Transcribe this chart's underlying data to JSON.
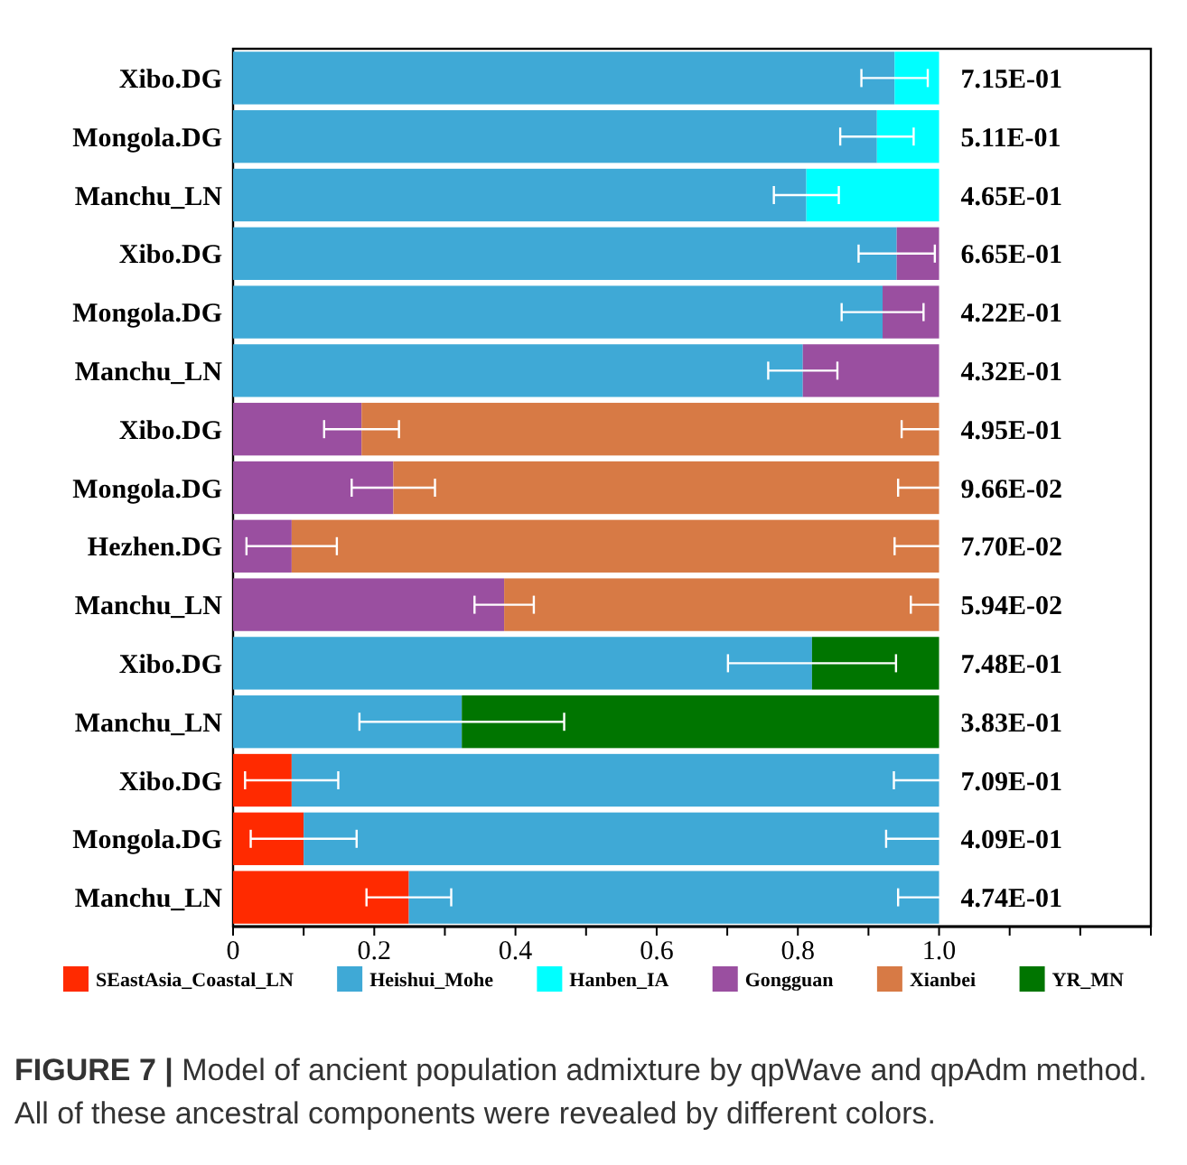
{
  "chart_data": {
    "type": "bar",
    "orientation": "horizontal",
    "stacked": true,
    "categories": [
      "Xibo.DG",
      "Mongola.DG",
      "Manchu_LN",
      "Xibo.DG",
      "Mongola.DG",
      "Manchu_LN",
      "Xibo.DG",
      "Mongola.DG",
      "Hezhen.DG",
      "Manchu_LN",
      "Xibo.DG",
      "Manchu_LN",
      "Xibo.DG",
      "Mongola.DG",
      "Manchu_LN"
    ],
    "series": [
      {
        "name": "SEastAsia_Coastal_LN",
        "color": "#ff2a00",
        "values": [
          null,
          null,
          null,
          null,
          null,
          null,
          null,
          null,
          null,
          null,
          null,
          null,
          0.083,
          0.1,
          0.249
        ],
        "errors": [
          null,
          null,
          null,
          null,
          null,
          null,
          null,
          null,
          null,
          null,
          null,
          null,
          0.066,
          0.075,
          0.06
        ]
      },
      {
        "name": "Heishui_Mohe",
        "color": "#3fa9d6",
        "values": [
          0.937,
          0.912,
          0.812,
          0.94,
          0.92,
          0.807,
          null,
          null,
          null,
          null,
          0.82,
          0.324,
          0.917,
          0.9,
          0.751
        ],
        "errors": [
          0.047,
          0.052,
          0.046,
          0.054,
          0.058,
          0.049,
          null,
          null,
          null,
          null,
          0.119,
          0.145,
          0.064,
          0.075,
          0.058
        ]
      },
      {
        "name": "Hanben_IA",
        "color": "#00ffff",
        "values": [
          0.063,
          0.088,
          0.188,
          null,
          null,
          null,
          null,
          null,
          null,
          null,
          null,
          null,
          null,
          null,
          null
        ]
      },
      {
        "name": "Gongguan",
        "color": "#9a4fa0",
        "values": [
          null,
          null,
          null,
          0.06,
          0.08,
          0.193,
          0.182,
          0.227,
          0.083,
          0.384,
          null,
          null,
          null,
          null,
          null
        ],
        "errors": [
          null,
          null,
          null,
          null,
          null,
          null,
          0.053,
          0.059,
          0.064,
          0.042,
          null,
          null,
          null,
          null,
          null
        ]
      },
      {
        "name": "Xianbei",
        "color": "#d77a45",
        "values": [
          null,
          null,
          null,
          null,
          null,
          null,
          0.818,
          0.773,
          0.917,
          0.616,
          null,
          null,
          null,
          null,
          null
        ],
        "errors": [
          null,
          null,
          null,
          null,
          null,
          null,
          0.053,
          0.058,
          0.063,
          0.04,
          null,
          null,
          null,
          null,
          null
        ]
      },
      {
        "name": "YR_MN",
        "color": "#007500",
        "values": [
          null,
          null,
          null,
          null,
          null,
          null,
          null,
          null,
          null,
          null,
          0.18,
          0.676,
          null,
          null,
          null
        ]
      }
    ],
    "xlim": [
      0,
      1.3
    ],
    "xticks": [
      0,
      {
        "value": 0.1,
        "label": null
      },
      0.2,
      {
        "value": 0.3,
        "label": null
      },
      0.4,
      {
        "value": 0.5,
        "label": null
      },
      0.6,
      {
        "value": 0.7,
        "label": null
      },
      0.8,
      {
        "value": 0.9,
        "label": null
      },
      {
        "value": 1,
        "label": "1.0"
      },
      {
        "value": 1.1,
        "label": null
      },
      {
        "value": 1.2,
        "label": null
      },
      {
        "value": 1.3,
        "label": null
      }
    ],
    "legend": "bottom",
    "annotations": [
      "7.15E-01",
      "5.11E-01",
      "4.65E-01",
      "6.65E-01",
      "4.22E-01",
      "4.32E-01",
      "4.95E-01",
      "9.66E-02",
      "7.70E-02",
      "5.94E-02",
      "7.48E-01",
      "3.83E-01",
      "7.09E-01",
      "4.09E-01",
      "4.74E-01",
      "FIGURE 7 | Model of ancient population admixture by qpWave and qpAdm method. All of these ancestral components were revealed by different colors."
    ]
  }
}
